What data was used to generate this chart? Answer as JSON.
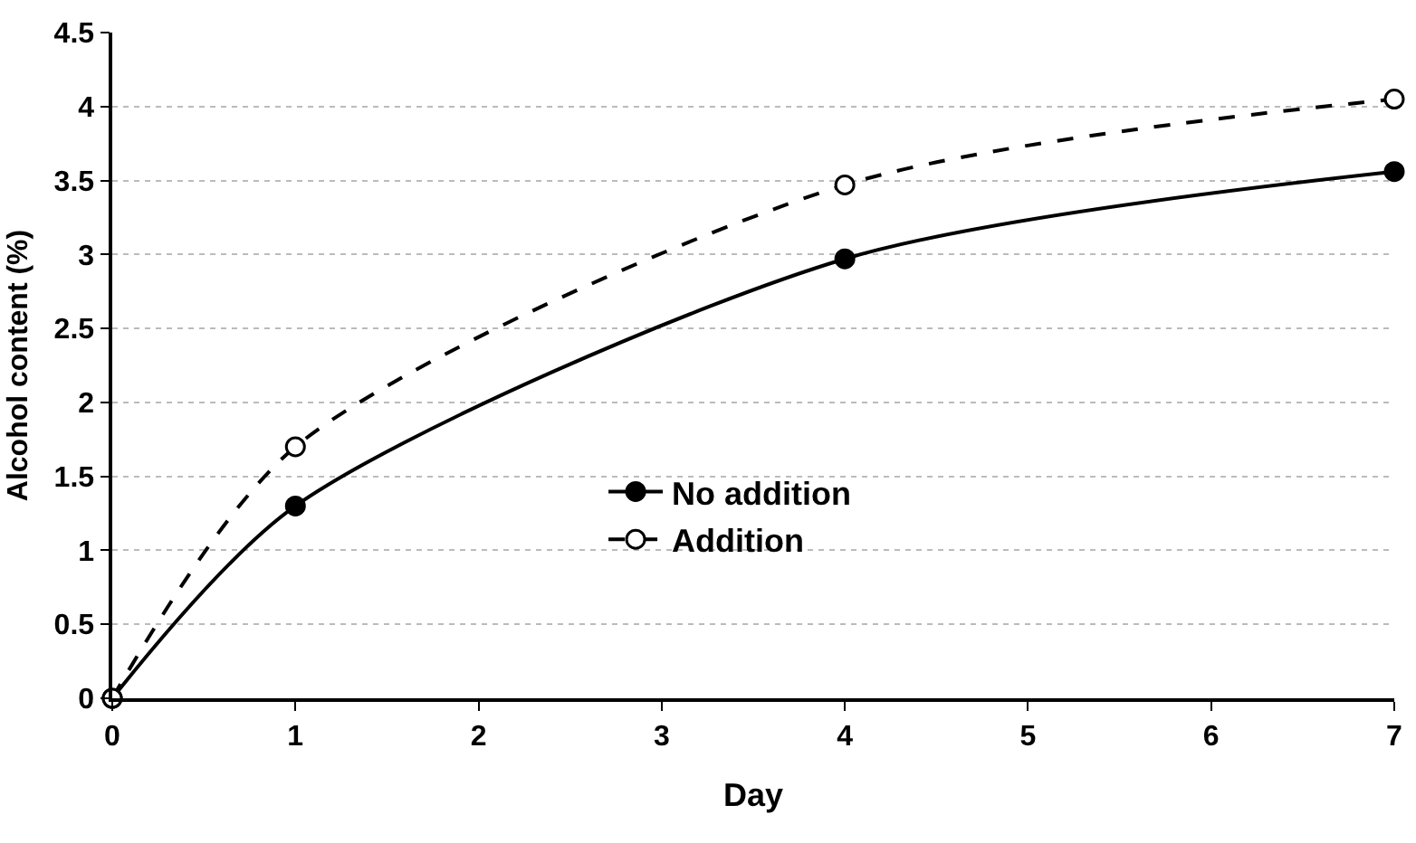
{
  "chart_data": {
    "type": "line",
    "xlabel": "Day",
    "ylabel": "Alcohol content (%)",
    "x": [
      0,
      1,
      4,
      7
    ],
    "series": [
      {
        "name": "No addition",
        "color": "#000000",
        "line_style": "solid",
        "values": [
          0,
          1.3,
          2.97,
          3.56
        ]
      },
      {
        "name": "Addition",
        "color": "#000000",
        "line_style": "dashed",
        "values": [
          0,
          1.7,
          3.47,
          4.05
        ]
      }
    ],
    "xlim": [
      0,
      7
    ],
    "xticks": [
      0,
      1,
      2,
      3,
      4,
      5,
      6,
      7
    ],
    "ylim": [
      0,
      4.5
    ],
    "yticks": [
      0,
      0.5,
      1,
      1.5,
      2,
      2.5,
      3,
      3.5,
      4,
      4.5
    ],
    "grid": "y",
    "legend": "center",
    "marker": "circle"
  }
}
